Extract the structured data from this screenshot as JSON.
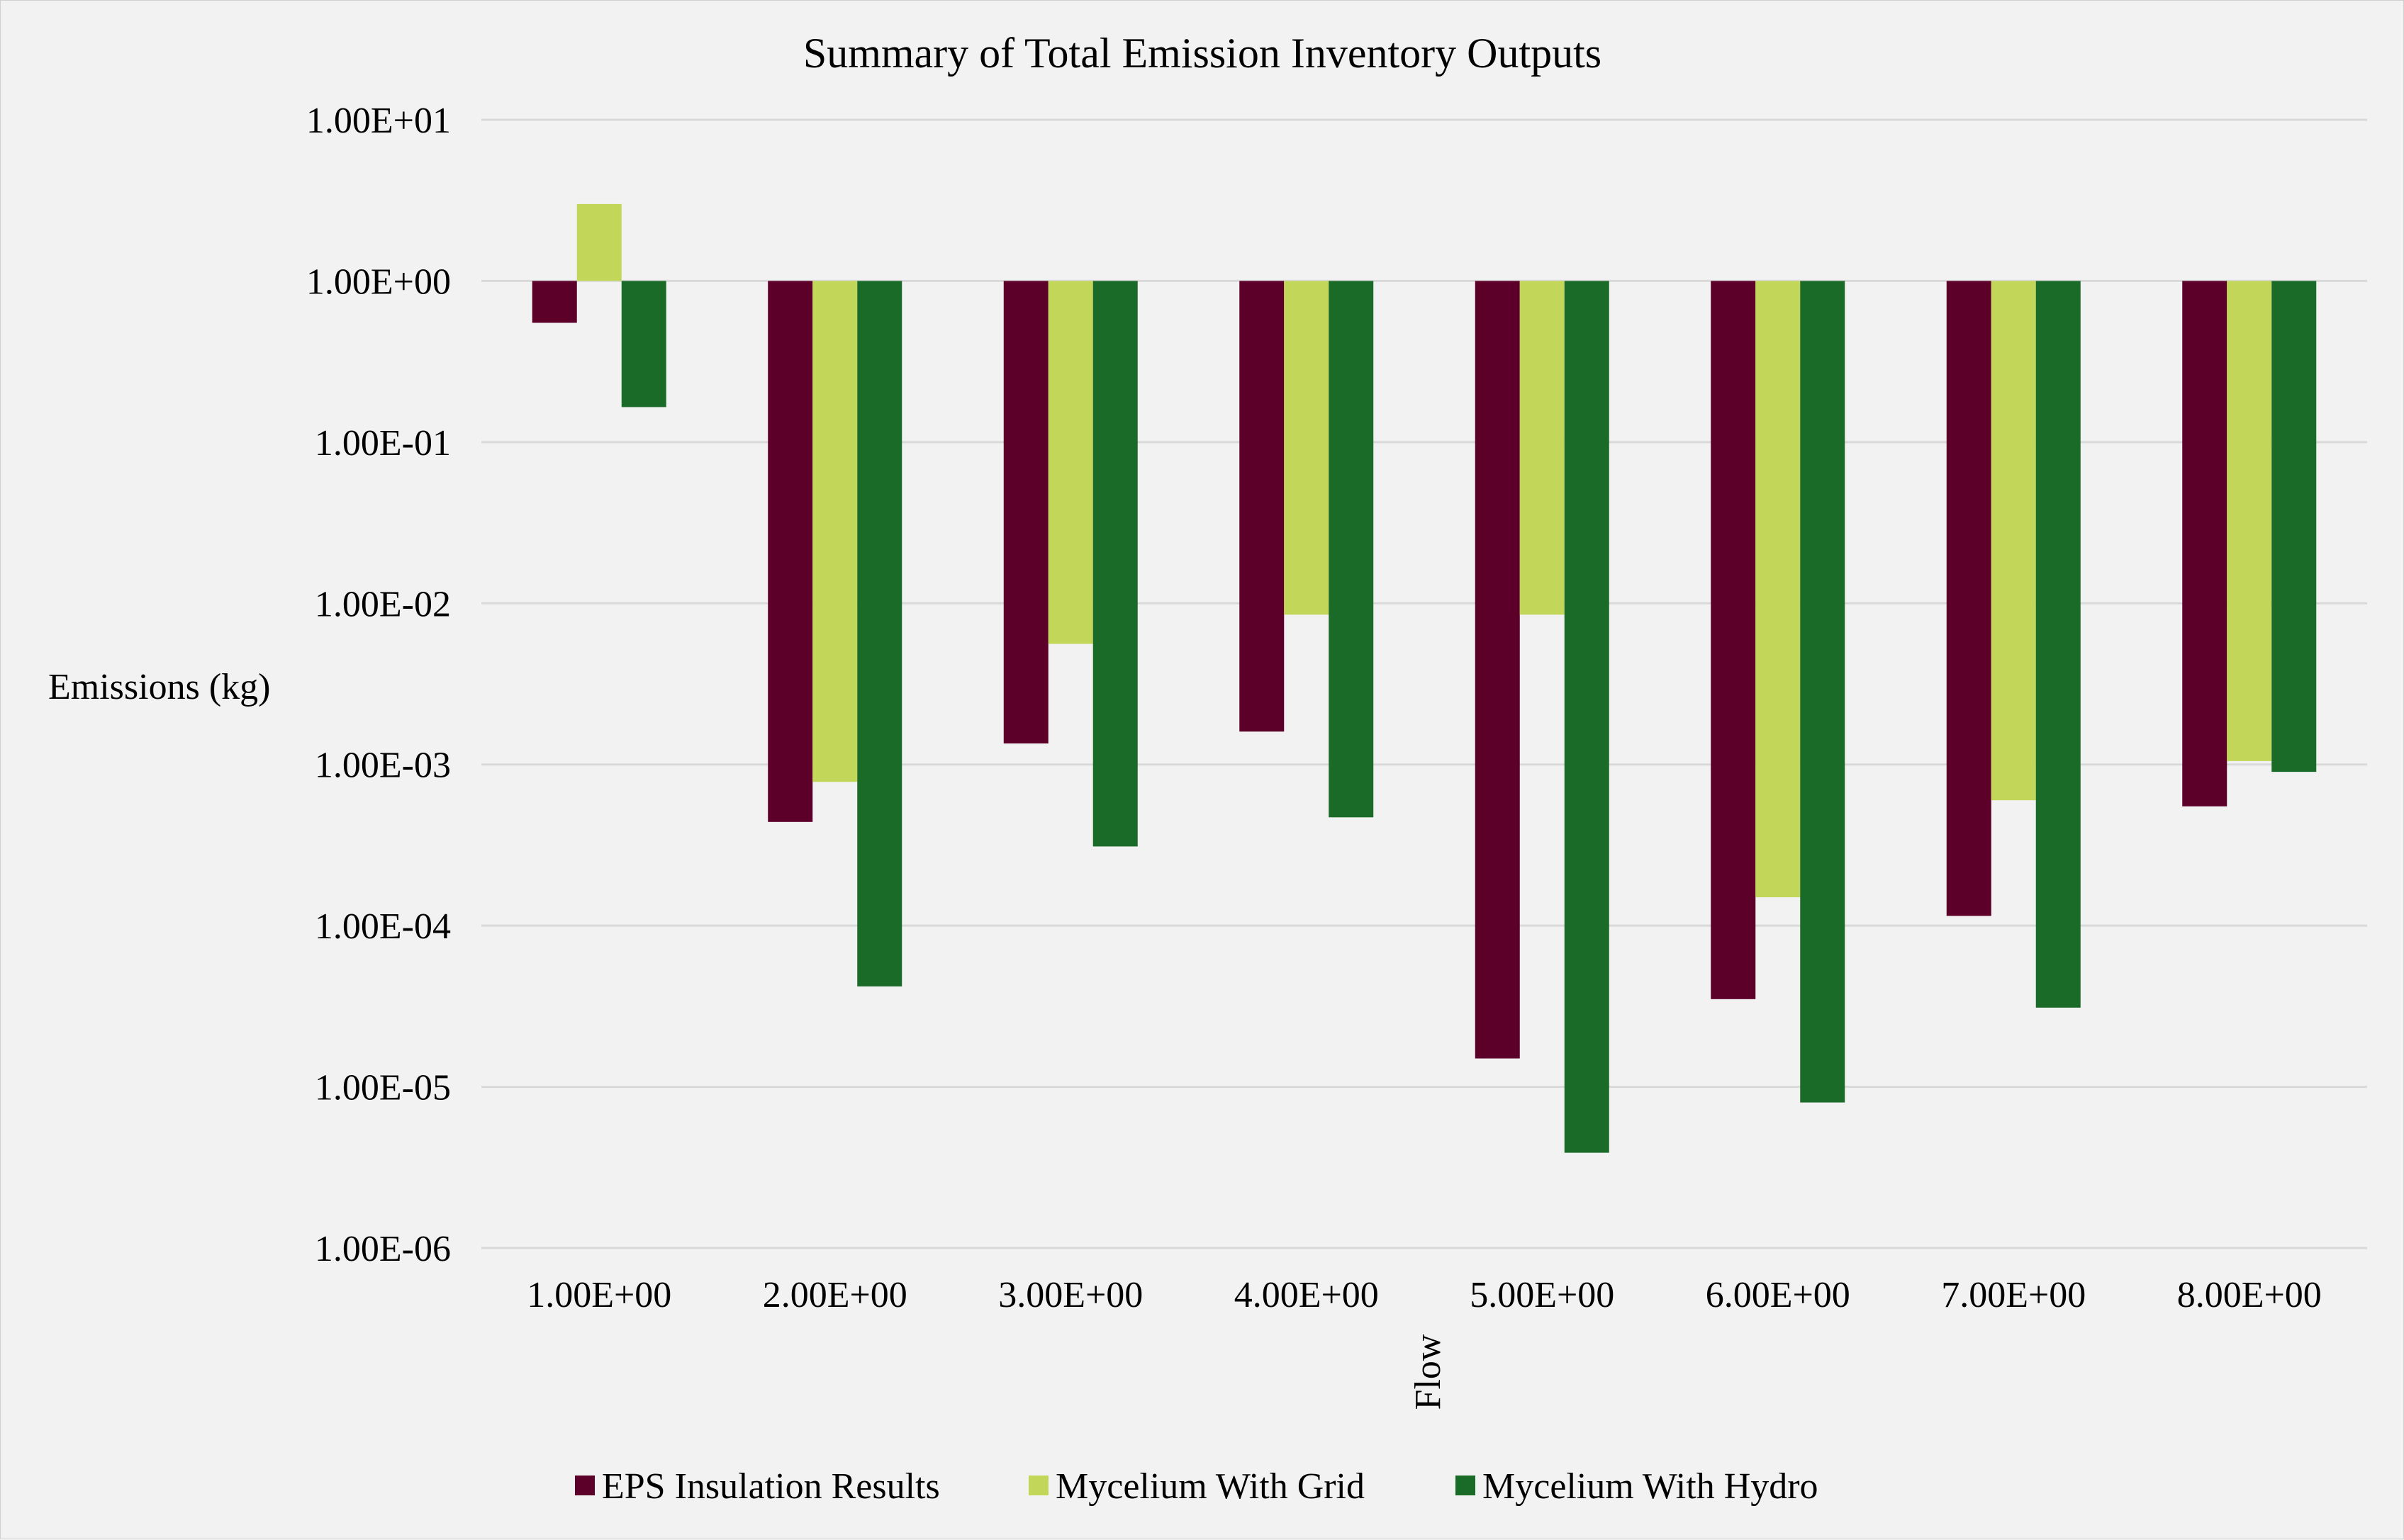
{
  "chart_data": {
    "type": "bar",
    "title": "Summary of Total Emission Inventory Outputs",
    "xlabel": "Flow",
    "ylabel": "Emissions (kg)",
    "yscale": "log",
    "ybase": 1,
    "ylim": [
      1e-06,
      10
    ],
    "yticks": [
      {
        "value": 10,
        "label": "1.00E+01"
      },
      {
        "value": 1,
        "label": "1.00E+00"
      },
      {
        "value": 0.1,
        "label": "1.00E-01"
      },
      {
        "value": 0.01,
        "label": "1.00E-02"
      },
      {
        "value": 0.001,
        "label": "1.00E-03"
      },
      {
        "value": 0.0001,
        "label": "1.00E-04"
      },
      {
        "value": 1e-05,
        "label": "1.00E-05"
      },
      {
        "value": 1e-06,
        "label": "1.00E-06"
      }
    ],
    "categories": [
      "1.00E+00",
      "2.00E+00",
      "3.00E+00",
      "4.00E+00",
      "5.00E+00",
      "6.00E+00",
      "7.00E+00",
      "8.00E+00"
    ],
    "series": [
      {
        "name": "EPS Insulation Results",
        "color": "#5c0029",
        "values": [
          0.55,
          0.00044,
          0.00135,
          0.0016,
          1.5e-05,
          3.5e-05,
          0.000115,
          0.00055
        ]
      },
      {
        "name": "Mycelium With Grid",
        "color": "#c2d75a",
        "values": [
          3.0,
          0.00078,
          0.0056,
          0.0085,
          0.0085,
          0.00015,
          0.0006,
          0.00105
        ]
      },
      {
        "name": "Mycelium With Hydro",
        "color": "#1a6b28",
        "values": [
          0.165,
          4.2e-05,
          0.00031,
          0.00047,
          3.9e-06,
          8e-06,
          3.1e-05,
          0.0009
        ]
      }
    ],
    "grid": true,
    "legend_position": "bottom"
  }
}
